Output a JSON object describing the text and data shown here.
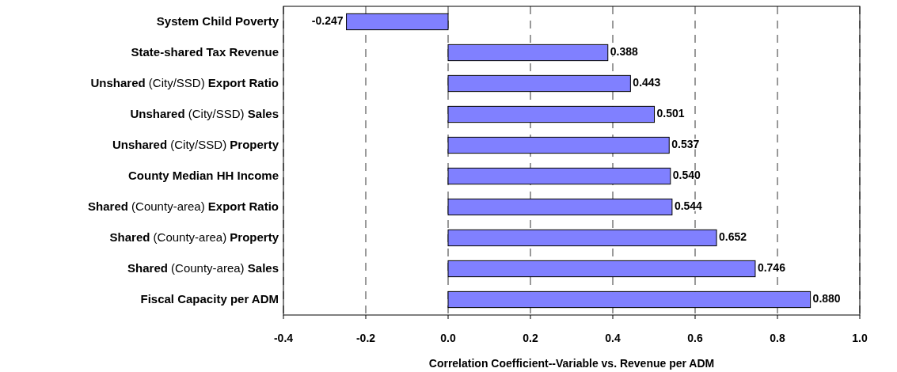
{
  "chart_data": {
    "type": "bar",
    "orientation": "horizontal",
    "xlabel": "Correlation Coefficient--Variable vs. Revenue per ADM",
    "categories": [
      "System Child Poverty",
      "State-shared Tax Revenue",
      "Unshared (City/SSD) Export Ratio",
      "Unshared (City/SSD) Sales",
      "Unshared (City/SSD) Property",
      "County Median HH Income",
      "Shared (County-area) Export Ratio",
      "Shared (County-area) Property",
      "Shared (County-area) Sales",
      "Fiscal Capacity per ADM"
    ],
    "values": [
      -0.247,
      0.388,
      0.443,
      0.501,
      0.537,
      0.54,
      0.544,
      0.652,
      0.746,
      0.88
    ],
    "value_labels": [
      "-0.247",
      "0.388",
      "0.443",
      "0.501",
      "0.537",
      "0.540",
      "0.544",
      "0.652",
      "0.746",
      "0.880"
    ],
    "color": "#8080ff",
    "xlim": [
      -0.4,
      1.0
    ],
    "xticks": [
      {
        "value": -0.4,
        "label": "-0.4"
      },
      {
        "value": -0.2,
        "label": "-0.2"
      },
      {
        "value": 0,
        "label": "0.0"
      },
      {
        "value": 0.2,
        "label": "0.2"
      },
      {
        "value": 0.4,
        "label": "0.4"
      },
      {
        "value": 0.6,
        "label": "0.6"
      },
      {
        "value": 0.8,
        "label": "0.8"
      },
      {
        "value": 1.0,
        "label": "1.0"
      }
    ],
    "grid": "x"
  }
}
